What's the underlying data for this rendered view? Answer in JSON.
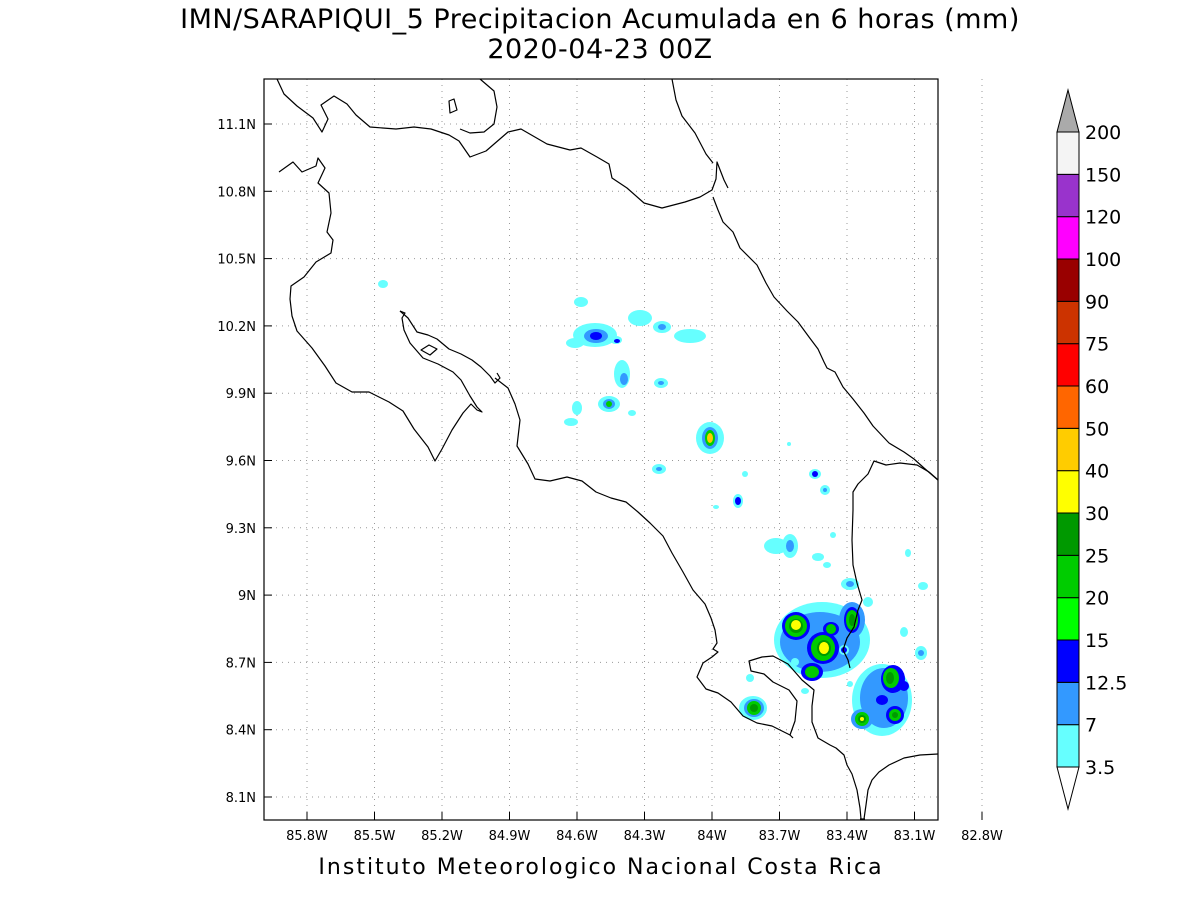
{
  "header": {
    "title_line1": "IMN/SARAPIQUI_5 Precipitacion Acumulada en 6 horas (mm)",
    "title_line2": "2020-04-23 00Z"
  },
  "footer": {
    "credit": "Instituto Meteorologico Nacional Costa Rica"
  },
  "map": {
    "lon_ticks": [
      "85.8W",
      "85.5W",
      "85.2W",
      "84.9W",
      "84.6W",
      "84.3W",
      "84W",
      "83.7W",
      "83.4W",
      "83.1W",
      "82.8W"
    ],
    "lat_ticks": [
      "11.1N",
      "10.8N",
      "10.5N",
      "10.2N",
      "9.9N",
      "9.6N",
      "9.3N",
      "9N",
      "8.7N",
      "8.4N",
      "8.1N"
    ],
    "grid": "dotted",
    "colorbar": {
      "labels": [
        "3.5",
        "7",
        "12.5",
        "15",
        "20",
        "25",
        "30",
        "40",
        "50",
        "60",
        "75",
        "90",
        "100",
        "120",
        "150",
        "200"
      ],
      "colors": [
        "#66ffff",
        "#3399ff",
        "#0000ff",
        "#00ff00",
        "#00cc00",
        "#009900",
        "#ffff00",
        "#ffcc00",
        "#ff6600",
        "#ff0000",
        "#cc3300",
        "#990000",
        "#ff00ff",
        "#9933cc",
        "#f4f4f4",
        "#aaaaaa"
      ]
    }
  }
}
